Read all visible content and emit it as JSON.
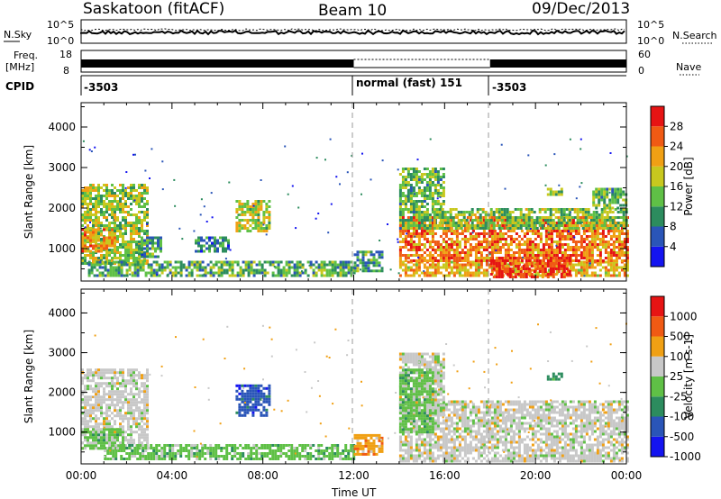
{
  "header": {
    "station": "Saskatoon (fitACF)",
    "beam": "Beam 10",
    "date": "09/Dec/2013"
  },
  "summary_panels": {
    "nsky": {
      "label": "N.Sky",
      "ticks": [
        "10^5",
        "10^0"
      ],
      "right_label": "N.Search",
      "right_ticks": [
        "10^5",
        "10^0"
      ]
    },
    "freq": {
      "label_line1": "Freq.",
      "label_line2": "[MHz]",
      "ticks": [
        "18",
        "8"
      ],
      "right_label": "Nave",
      "right_ticks": [
        "60",
        "0"
      ]
    },
    "cpid": {
      "label": "CPID",
      "segments": [
        {
          "start_hour": 0,
          "text": "-3503"
        },
        {
          "start_hour": 12,
          "text": "normal (fast) 151"
        },
        {
          "start_hour": 18,
          "text": "-3503"
        }
      ]
    }
  },
  "chart_data": [
    {
      "type": "heatmap",
      "name": "power",
      "ylabel": "Slant Range [km]",
      "xlabel": "",
      "xlim": [
        0,
        24
      ],
      "ylim": [
        200,
        4600
      ],
      "yticks": [
        "1000",
        "2000",
        "3000",
        "4000"
      ],
      "colorbar": {
        "label": "Power [dB]",
        "ticks": [
          "4",
          "8",
          "12",
          "16",
          "20",
          "24",
          "28"
        ],
        "colors": [
          "#1414f0",
          "#2a55b8",
          "#2c8c5e",
          "#5fc046",
          "#c8c81e",
          "#f0a014",
          "#f05a14",
          "#e61414"
        ]
      },
      "regions": [
        {
          "t0": 0.0,
          "t1": 2.9,
          "r0": 600,
          "r1": 2600,
          "level": 0.5
        },
        {
          "t0": 0.0,
          "t1": 1.5,
          "r0": 900,
          "r1": 1500,
          "level": 0.75
        },
        {
          "t0": 0.3,
          "t1": 12.0,
          "r0": 300,
          "r1": 700,
          "level": 0.35
        },
        {
          "t0": 2.5,
          "t1": 3.5,
          "r0": 800,
          "r1": 1300,
          "level": 0.3
        },
        {
          "t0": 6.8,
          "t1": 8.3,
          "r0": 1400,
          "r1": 2200,
          "level": 0.55
        },
        {
          "t0": 5.0,
          "t1": 6.5,
          "r0": 900,
          "r1": 1300,
          "level": 0.25
        },
        {
          "t0": 12.0,
          "t1": 13.3,
          "r0": 450,
          "r1": 950,
          "level": 0.3
        },
        {
          "t0": 14.0,
          "t1": 24.0,
          "r0": 300,
          "r1": 700,
          "level": 0.7
        },
        {
          "t0": 14.0,
          "t1": 24.0,
          "r0": 700,
          "r1": 1800,
          "level": 0.8
        },
        {
          "t0": 14.0,
          "t1": 16.0,
          "r0": 1500,
          "r1": 3000,
          "level": 0.4
        },
        {
          "t0": 18.0,
          "t1": 21.5,
          "r0": 300,
          "r1": 800,
          "level": 0.95
        },
        {
          "t0": 15.5,
          "t1": 24.0,
          "r0": 1500,
          "r1": 2000,
          "level": 0.45
        },
        {
          "t0": 20.5,
          "t1": 21.2,
          "r0": 2300,
          "r1": 2500,
          "level": 0.45
        },
        {
          "t0": 22.5,
          "t1": 24.0,
          "r0": 2000,
          "r1": 2500,
          "level": 0.4
        }
      ]
    },
    {
      "type": "heatmap",
      "name": "velocity",
      "ylabel": "Slant Range [km]",
      "xlabel": "Time UT",
      "xlim": [
        0,
        24
      ],
      "ylim": [
        200,
        4600
      ],
      "xticks": [
        "00:00",
        "04:00",
        "08:00",
        "12:00",
        "16:00",
        "20:00",
        "00:00"
      ],
      "yticks": [
        "1000",
        "2000",
        "3000",
        "4000"
      ],
      "colorbar": {
        "label": "Velocity [m s-1]",
        "ticks": [
          "1000",
          "500",
          "100",
          "25",
          "-25",
          "-100",
          "-500",
          "-1000"
        ],
        "colors": [
          "#1414f0",
          "#2a55b8",
          "#2c8c5e",
          "#5fc046",
          "#c8c8c8",
          "#f0a014",
          "#f05a14",
          "#e61414"
        ]
      },
      "regions": [
        {
          "t0": 0.0,
          "t1": 2.9,
          "r0": 600,
          "r1": 2600,
          "level": 4
        },
        {
          "t0": 0.0,
          "t1": 1.8,
          "r0": 600,
          "r1": 1100,
          "level": 3
        },
        {
          "t0": 1.0,
          "t1": 12.0,
          "r0": 300,
          "r1": 700,
          "level": 3
        },
        {
          "t0": 6.8,
          "t1": 8.3,
          "r0": 1400,
          "r1": 2200,
          "level": 1
        },
        {
          "t0": 12.0,
          "t1": 13.3,
          "r0": 450,
          "r1": 950,
          "level": 5
        },
        {
          "t0": 14.0,
          "t1": 24.0,
          "r0": 300,
          "r1": 1800,
          "level": 4
        },
        {
          "t0": 14.0,
          "t1": 16.0,
          "r0": 1500,
          "r1": 3000,
          "level": 4
        },
        {
          "t0": 14.0,
          "t1": 15.5,
          "r0": 1000,
          "r1": 2600,
          "level": 3
        },
        {
          "t0": 20.5,
          "t1": 21.2,
          "r0": 2300,
          "r1": 2500,
          "level": 2
        }
      ]
    }
  ]
}
